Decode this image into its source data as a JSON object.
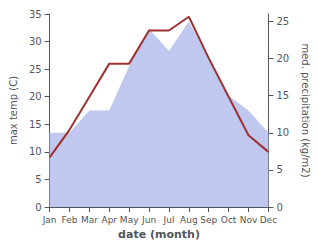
{
  "chart_data": {
    "type": "line",
    "categories": [
      "Jan",
      "Feb",
      "Mar",
      "Apr",
      "May",
      "Jun",
      "Jul",
      "Aug",
      "Sep",
      "Oct",
      "Nov",
      "Dec"
    ],
    "xlabel": "date (month)",
    "ylabel": "max temp (C)",
    "y2label": "med. precipitation (kg/m2)",
    "series": [
      {
        "type": "area",
        "axis": "y2",
        "color": "#c0c8f0",
        "values": [
          10,
          10,
          13,
          13,
          19,
          24,
          21,
          25,
          20,
          15,
          13,
          10
        ]
      },
      {
        "type": "line",
        "color": "#a03030",
        "values": [
          9,
          14,
          20,
          26,
          26,
          32,
          32,
          34.5,
          27,
          20,
          13,
          10
        ]
      }
    ],
    "ylim": [
      0,
      35
    ],
    "yticks": [
      0,
      5,
      10,
      15,
      20,
      25,
      30,
      35
    ],
    "y2lim": [
      0,
      26
    ],
    "y2ticks": [
      0,
      5,
      10,
      15,
      20,
      25
    ],
    "grid": false
  }
}
